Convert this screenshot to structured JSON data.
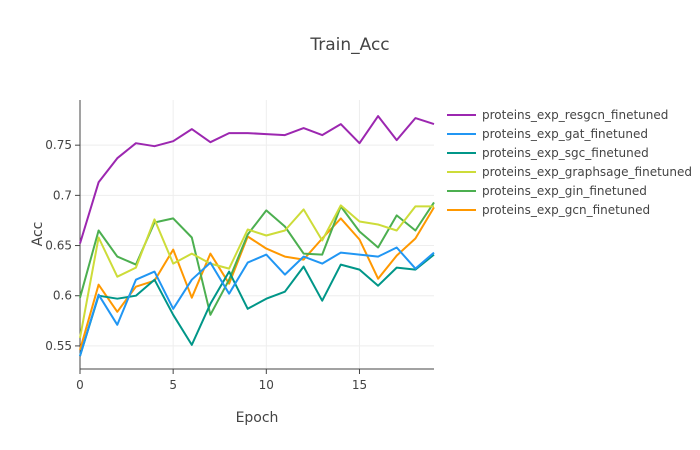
{
  "chart_data": {
    "type": "line",
    "title": "Train_Acc",
    "xlabel": "Epoch",
    "ylabel": "Acc",
    "xlim": [
      0,
      19
    ],
    "ylim": [
      0.527,
      0.795
    ],
    "xticks": [
      0,
      5,
      10,
      15
    ],
    "yticks": [
      0.55,
      0.6,
      0.65,
      0.7,
      0.75
    ],
    "ytick_labels": [
      "0.55",
      "0.6",
      "0.65",
      "0.7",
      "0.75"
    ],
    "grid": true,
    "legend_position": "right",
    "x": [
      0,
      1,
      2,
      3,
      4,
      5,
      6,
      7,
      8,
      9,
      10,
      11,
      12,
      13,
      14,
      15,
      16,
      17,
      18,
      19
    ],
    "series": [
      {
        "name": "proteins_exp_resgcn_finetuned",
        "color": "#9c27b0",
        "values": [
          0.652,
          0.713,
          0.737,
          0.752,
          0.749,
          0.754,
          0.766,
          0.753,
          0.762,
          0.762,
          0.761,
          0.76,
          0.767,
          0.76,
          0.771,
          0.752,
          0.779,
          0.755,
          0.777,
          0.771
        ]
      },
      {
        "name": "proteins_exp_gat_finetuned",
        "color": "#2196f3",
        "values": [
          0.54,
          0.601,
          0.571,
          0.616,
          0.624,
          0.587,
          0.616,
          0.633,
          0.602,
          0.633,
          0.641,
          0.621,
          0.639,
          0.632,
          0.643,
          0.641,
          0.639,
          0.648,
          0.627,
          0.643
        ]
      },
      {
        "name": "proteins_exp_sgc_finetuned",
        "color": "#009688",
        "values": [
          0.54,
          0.6,
          0.597,
          0.6,
          0.616,
          0.581,
          0.551,
          0.592,
          0.624,
          0.587,
          0.597,
          0.604,
          0.629,
          0.595,
          0.631,
          0.626,
          0.61,
          0.628,
          0.626,
          0.641
        ]
      },
      {
        "name": "proteins_exp_graphsage_finetuned",
        "color": "#cddc39",
        "values": [
          0.558,
          0.658,
          0.619,
          0.628,
          0.676,
          0.632,
          0.642,
          0.632,
          0.627,
          0.666,
          0.66,
          0.665,
          0.686,
          0.655,
          0.69,
          0.674,
          0.671,
          0.665,
          0.689,
          0.689
        ]
      },
      {
        "name": "proteins_exp_gin_finetuned",
        "color": "#4caf50",
        "values": [
          0.598,
          0.665,
          0.639,
          0.631,
          0.673,
          0.677,
          0.658,
          0.581,
          0.616,
          0.661,
          0.685,
          0.669,
          0.642,
          0.641,
          0.689,
          0.664,
          0.648,
          0.68,
          0.665,
          0.693
        ]
      },
      {
        "name": "proteins_exp_gcn_finetuned",
        "color": "#ff9800",
        "values": [
          0.546,
          0.611,
          0.584,
          0.609,
          0.615,
          0.646,
          0.598,
          0.642,
          0.612,
          0.659,
          0.647,
          0.639,
          0.636,
          0.657,
          0.677,
          0.656,
          0.617,
          0.64,
          0.657,
          0.688
        ]
      }
    ]
  }
}
